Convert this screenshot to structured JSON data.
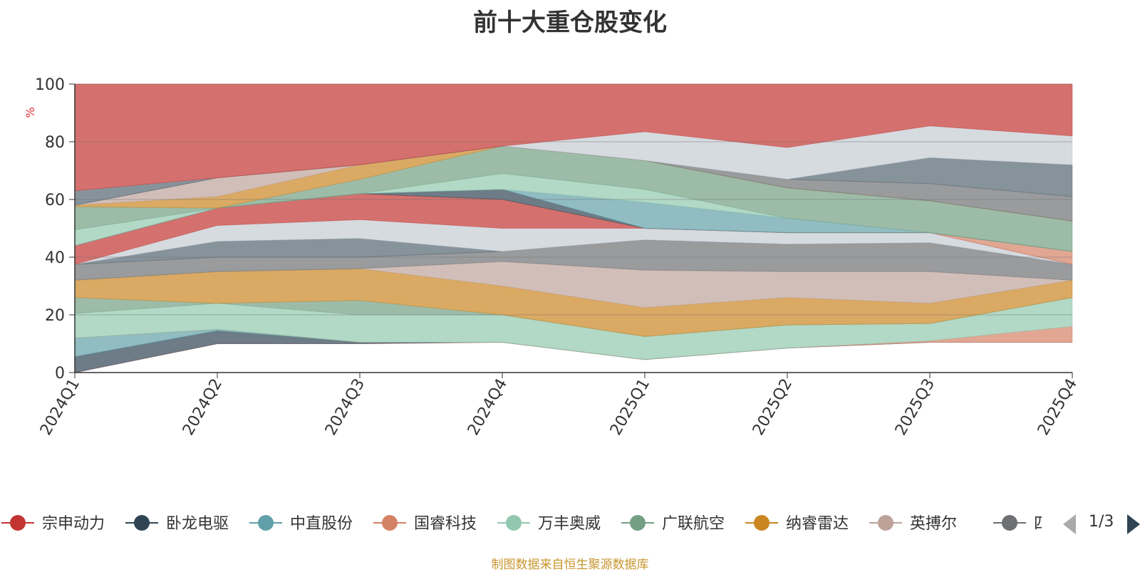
{
  "title": "前十大重仓股变化",
  "footer": "制图数据来自恒生聚源数据库",
  "legend_pager": "1/3",
  "chart_data": {
    "type": "area",
    "stacked": true,
    "normalized_percent": true,
    "title": "前十大重仓股变化",
    "ylabel": "%",
    "ylim": [
      0,
      100
    ],
    "yticks": [
      0,
      20,
      40,
      60,
      80,
      100
    ],
    "categories": [
      "2024Q1",
      "2024Q2",
      "2024Q3",
      "2024Q4",
      "2025Q1",
      "2025Q2",
      "2025Q3",
      "2025Q4"
    ],
    "legend_position": "bottom",
    "series": [
      {
        "name": "宗申动力",
        "color": "#c23531"
      },
      {
        "name": "卧龙电驱",
        "color": "#2f4554"
      },
      {
        "name": "中直股份",
        "color": "#61a0a8"
      },
      {
        "name": "国睿科技",
        "color": "#d48265"
      },
      {
        "name": "万丰奥威",
        "color": "#91c7ae"
      },
      {
        "name": "广联航空",
        "color": "#749f83"
      },
      {
        "name": "纳睿雷达",
        "color": "#ca8622"
      },
      {
        "name": "英搏尔",
        "color": "#bda29a"
      },
      {
        "name": "四川九洲",
        "color": "#6e7074"
      }
    ],
    "bands": [
      {
        "color": "#c23531",
        "low": [
          0,
          10,
          10,
          10.5,
          4.5,
          8.5,
          10.5,
          10.5
        ],
        "high": [
          0,
          10,
          10,
          10.5,
          4.5,
          8.5,
          10.5,
          10.5
        ]
      },
      {
        "color": "#2f4554",
        "low": [
          0,
          10,
          10,
          10.5,
          4.5,
          8.5,
          10.5,
          10.5
        ],
        "high": [
          5.5,
          14.5,
          10.5,
          10.5,
          4.5,
          8.5,
          10.5,
          10.5
        ]
      },
      {
        "color": "#61a0a8",
        "low": [
          5.5,
          14.5,
          10.5,
          10.5,
          4.5,
          8.5,
          10.5,
          10.5
        ],
        "high": [
          12,
          15,
          10.5,
          10.5,
          4.5,
          8.5,
          10.5,
          10.5
        ]
      },
      {
        "color": "#d48265",
        "low": [
          12,
          15,
          10.5,
          10.5,
          4.5,
          8.5,
          10.5,
          10.5
        ],
        "high": [
          12,
          15,
          10.5,
          10.5,
          4.5,
          8.5,
          11,
          16
        ]
      },
      {
        "color": "#91c7ae",
        "low": [
          12,
          15,
          10.5,
          10.5,
          4.5,
          8.5,
          11,
          16
        ],
        "high": [
          20.5,
          24,
          20,
          20,
          12.5,
          16.5,
          17,
          26
        ]
      },
      {
        "color": "#749f83",
        "low": [
          20.5,
          24,
          20,
          20,
          12.5,
          16.5,
          17,
          26
        ],
        "high": [
          26,
          24,
          25,
          20,
          12.5,
          16.5,
          17,
          26
        ]
      },
      {
        "color": "#ca8622",
        "low": [
          26,
          24,
          25,
          20,
          12.5,
          16.5,
          17,
          26
        ],
        "high": [
          32,
          35,
          36,
          30,
          22.5,
          26,
          24,
          32
        ]
      },
      {
        "color": "#bda29a",
        "low": [
          32,
          35,
          36,
          30,
          22.5,
          26,
          24,
          32
        ],
        "high": [
          32,
          35,
          36,
          38.5,
          35.5,
          35,
          35,
          32
        ]
      },
      {
        "color": "#6e7074",
        "low": [
          32,
          35,
          36,
          38.5,
          35.5,
          35,
          35,
          32
        ],
        "high": [
          37.5,
          40,
          40,
          42,
          46,
          44.5,
          45,
          37.5
        ]
      },
      {
        "color": "#546570",
        "low": [
          37.5,
          40,
          40,
          42,
          46,
          44.5,
          45,
          37.5
        ],
        "high": [
          37.5,
          45.5,
          46.5,
          42,
          46,
          44.5,
          45,
          37.5
        ]
      },
      {
        "color": "#c4ccd3",
        "low": [
          37.5,
          45.5,
          46.5,
          42,
          46,
          44.5,
          45,
          37.5
        ],
        "high": [
          37.5,
          51,
          53,
          50,
          50,
          48.5,
          48.5,
          37.5
        ]
      },
      {
        "color": "#c23531",
        "low": [
          37.5,
          51,
          53,
          50,
          50,
          48.5,
          48.5,
          37.5
        ],
        "high": [
          44,
          57,
          62,
          60,
          50,
          48.5,
          48.5,
          37.5
        ]
      },
      {
        "color": "#d48265",
        "low": [
          44,
          57,
          62,
          60,
          50,
          48.5,
          48.5,
          37.5
        ],
        "high": [
          44,
          57,
          62,
          60,
          50,
          48.5,
          48.5,
          42
        ]
      },
      {
        "color": "#2f4554",
        "low": [
          44,
          57,
          62,
          60,
          50,
          48.5,
          48.5,
          42
        ],
        "high": [
          44,
          57,
          62,
          63.5,
          50,
          48.5,
          48.5,
          42
        ]
      },
      {
        "color": "#61a0a8",
        "low": [
          44,
          57,
          62,
          63.5,
          50,
          48.5,
          48.5,
          42
        ],
        "high": [
          44,
          57,
          62,
          63.5,
          59,
          53.5,
          48.5,
          42
        ]
      },
      {
        "color": "#91c7ae",
        "low": [
          44,
          57,
          62,
          63.5,
          59,
          53.5,
          48.5,
          42
        ],
        "high": [
          49.5,
          57,
          62,
          69,
          63.5,
          53.5,
          48.5,
          42
        ]
      },
      {
        "color": "#749f83",
        "low": [
          49.5,
          57,
          62,
          69,
          63.5,
          53.5,
          48.5,
          42
        ],
        "high": [
          57.5,
          57,
          67,
          78.5,
          73.5,
          64,
          59.5,
          52.5
        ]
      },
      {
        "color": "#ca8622",
        "low": [
          57.5,
          57,
          67,
          78.5,
          73.5,
          64,
          59.5,
          52.5
        ],
        "high": [
          58,
          61,
          72,
          78.5,
          73.5,
          64,
          59.5,
          52.5
        ]
      },
      {
        "color": "#bda29a",
        "low": [
          58,
          61,
          72,
          78.5,
          73.5,
          64,
          59.5,
          52.5
        ],
        "high": [
          58,
          67.5,
          72,
          78.5,
          73.5,
          64,
          59.5,
          52.5
        ]
      },
      {
        "color": "#6e7074",
        "low": [
          58,
          67.5,
          72,
          78.5,
          73.5,
          64,
          59.5,
          52.5
        ],
        "high": [
          58,
          67.5,
          72,
          78.5,
          73.5,
          67,
          65.5,
          61
        ]
      },
      {
        "color": "#546570",
        "low": [
          58,
          67.5,
          72,
          78.5,
          73.5,
          67,
          65.5,
          61
        ],
        "high": [
          63,
          67.5,
          72,
          78.5,
          73.5,
          67,
          74.5,
          72
        ]
      },
      {
        "color": "#c4ccd3",
        "low": [
          63,
          67.5,
          72,
          78.5,
          73.5,
          67,
          74.5,
          72
        ],
        "high": [
          63,
          67.5,
          72,
          78.5,
          83.5,
          78,
          85.5,
          82
        ]
      },
      {
        "color": "#c23531",
        "low": [
          63,
          67.5,
          72,
          78.5,
          83.5,
          78,
          85.5,
          82
        ],
        "high": [
          100,
          100,
          100,
          100,
          100,
          100,
          100,
          100
        ]
      }
    ]
  }
}
